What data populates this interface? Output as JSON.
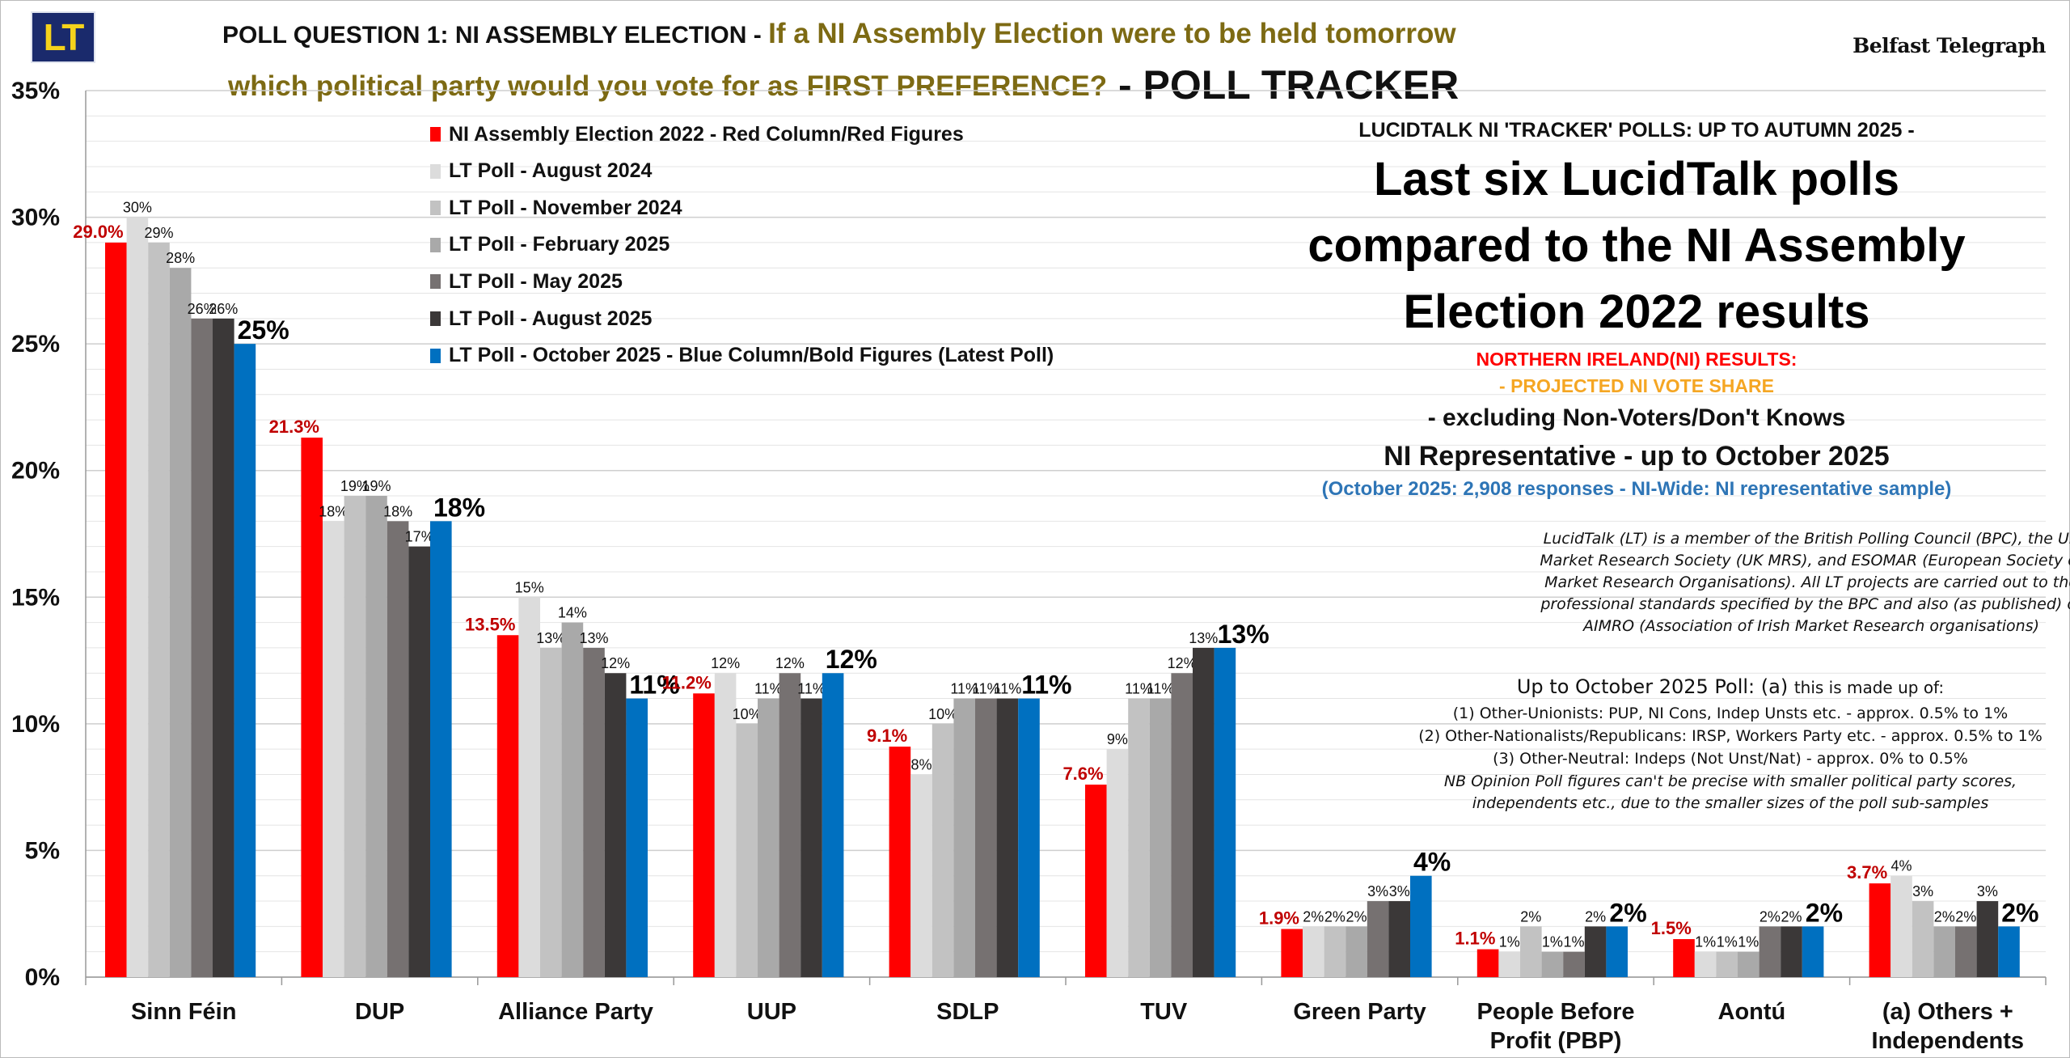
{
  "header": {
    "logo_text": "LT",
    "title_part1": "POLL QUESTION 1: NI ASSEMBLY ELECTION - ",
    "title_part2": "If a NI Assembly Election were to be held tomorrow",
    "title_line2a": "which political party would you vote for as FIRST PREFERENCE?",
    "title_line2b": " - POLL TRACKER",
    "brand": "Belfast Telegraph"
  },
  "right_panel": {
    "tracker_line": "LUCIDTALK NI 'TRACKER' POLLS: UP TO AUTUMN 2025 -",
    "big_title_1": "Last six LucidTalk polls",
    "big_title_2": "compared to the NI Assembly",
    "big_title_3": "Election 2022 results",
    "ni_results": "NORTHERN IRELAND(NI) RESULTS:",
    "projected": "- PROJECTED NI VOTE SHARE",
    "excluding": "- excluding Non-Voters/Don't Knows",
    "representative": "NI Representative - up to October 2025",
    "responses": "(October 2025: 2,908 responses - NI-Wide: NI representative sample)",
    "bpc_1": "LucidTalk (LT) is a member of the British Polling Council (BPC), the UK",
    "bpc_2": "Market Research Society (UK MRS), and ESOMAR (European Society of",
    "bpc_3": "Market Research Organisations). All LT projects are carried out to the",
    "bpc_4": "professional standards specified by the BPC and also (as published) of",
    "bpc_5": "AIMRO (Association of Irish Market Research organisations)",
    "others_head_a": "Up to October 2025 Poll: (a) ",
    "others_head_b": "this is made up of:",
    "others_1": "(1) Other-Unionists: PUP, NI Cons, Indep Unsts etc. - approx. 0.5% to 1%",
    "others_2": "(2) Other-Nationalists/Republicans: IRSP, Workers Party etc. - approx. 0.5% to 1%",
    "others_3": "(3) Other-Neutral: Indeps (Not Unst/Nat) - approx. 0% to 0.5%",
    "nb_1": "NB Opinion Poll figures can't be precise with smaller political party scores,",
    "nb_2": "independents etc., due to the smaller sizes of the poll sub-samples"
  },
  "colors": {
    "election": "#ff0000",
    "aug24": "#dcdcdc",
    "nov24": "#c2c2c2",
    "feb25": "#a9a9a9",
    "may25": "#767171",
    "aug25": "#3b3838",
    "oct25": "#0070c0",
    "election_label": "#c00000",
    "olive_text": "#7d6a13",
    "orange_text": "#f5a623",
    "blue_text": "#2e75b6"
  },
  "chart_data": {
    "type": "bar",
    "categories": [
      "Sinn Féin",
      "DUP",
      "Alliance Party",
      "UUP",
      "SDLP",
      "TUV",
      "Green Party",
      "People Before Profit (PBP)",
      "Aontú",
      "(a) Others + Independents"
    ],
    "category_lines": [
      [
        "Sinn Féin"
      ],
      [
        "DUP"
      ],
      [
        "Alliance Party"
      ],
      [
        "UUP"
      ],
      [
        "SDLP"
      ],
      [
        "TUV"
      ],
      [
        "Green Party"
      ],
      [
        "People Before",
        "Profit (PBP)"
      ],
      [
        "Aontú"
      ],
      [
        "(a) Others +",
        "Independents"
      ]
    ],
    "ylim": [
      0,
      35
    ],
    "yticks": [
      "0%",
      "5%",
      "10%",
      "15%",
      "20%",
      "25%",
      "30%",
      "35%"
    ],
    "series": [
      {
        "name": "NI Assembly Election 2022 - Red Column/Red Figures",
        "values": [
          29.0,
          21.3,
          13.5,
          11.2,
          9.1,
          7.6,
          1.9,
          1.1,
          1.5,
          3.7
        ],
        "labels": [
          "29.0%",
          "21.3%",
          "13.5%",
          "11.2%",
          "9.1%",
          "7.6%",
          "1.9%",
          "1.1%",
          "1.5%",
          "3.7%"
        ]
      },
      {
        "name": "LT Poll - August 2024",
        "values": [
          30,
          18,
          15,
          12,
          8,
          9,
          2,
          1,
          1,
          4
        ],
        "labels": [
          "30%",
          "18%",
          "15%",
          "12%",
          "8%",
          "9%",
          "2%",
          "1%",
          "1%",
          "4%"
        ]
      },
      {
        "name": "LT Poll - November 2024",
        "values": [
          29,
          19,
          13,
          10,
          10,
          11,
          2,
          2,
          1,
          3
        ],
        "labels": [
          "29%",
          "19%",
          "13%",
          "10%",
          "10%",
          "11%",
          "2%",
          "2%",
          "1%",
          "3%"
        ]
      },
      {
        "name": "LT Poll - February 2025",
        "values": [
          28,
          19,
          14,
          11,
          11,
          11,
          2,
          1,
          1,
          2
        ],
        "labels": [
          "28%",
          "19%",
          "14%",
          "11%",
          "11%",
          "11%",
          "2%",
          "1%",
          "1%",
          "2%"
        ]
      },
      {
        "name": "LT Poll - May 2025",
        "values": [
          26,
          18,
          13,
          12,
          11,
          12,
          3,
          1,
          2,
          2
        ],
        "labels": [
          "26%",
          "18%",
          "13%",
          "12%",
          "11%",
          "12%",
          "3%",
          "1%",
          "2%",
          "2%"
        ]
      },
      {
        "name": "LT Poll - August 2025",
        "values": [
          26,
          17,
          12,
          11,
          11,
          13,
          3,
          2,
          2,
          3
        ],
        "labels": [
          "26%",
          "17%",
          "12%",
          "11%",
          "11%",
          "13%",
          "3%",
          "2%",
          "2%",
          "3%"
        ]
      },
      {
        "name": "LT Poll - October 2025 - Blue Column/Bold Figures (Latest Poll)",
        "values": [
          25,
          18,
          11,
          12,
          11,
          13,
          4,
          2,
          2,
          2
        ],
        "labels": [
          "25%",
          "18%",
          "11%",
          "12%",
          "11%",
          "13%",
          "4%",
          "2%",
          "2%",
          "2%"
        ]
      }
    ],
    "grid": true,
    "legend_position": "top-left"
  }
}
